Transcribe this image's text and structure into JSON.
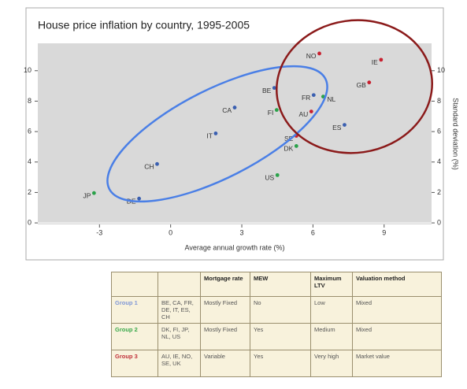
{
  "chart_data": {
    "type": "scatter",
    "title": "House price inflation by country, 1995-2005",
    "xlabel": "Average annual growth rate (%)",
    "y2label": "Standard deviation (%)",
    "point_labels": [
      "JP",
      "DE",
      "CH",
      "IT",
      "CA",
      "BE",
      "FI",
      "US",
      "FR",
      "NL",
      "AU",
      "SE",
      "DK",
      "ES",
      "NO",
      "IE",
      "GB"
    ],
    "x": [
      -3.23,
      -1.33,
      -0.57,
      1.9,
      2.7,
      4.37,
      4.47,
      4.5,
      6.03,
      6.43,
      5.93,
      5.3,
      5.3,
      7.33,
      6.27,
      8.87,
      8.37
    ],
    "values": [
      1.96,
      1.6,
      3.87,
      5.88,
      7.58,
      8.87,
      7.42,
      3.14,
      8.4,
      8.3,
      7.32,
      5.72,
      5.05,
      6.44,
      11.13,
      10.72,
      9.23
    ],
    "point_colors": [
      "#2aa24a",
      "#3a5fb0",
      "#3a5fb0",
      "#3a5fb0",
      "#3a5fb0",
      "#3a5fb0",
      "#2aa24a",
      "#2aa24a",
      "#3a5fb0",
      "#2aa24a",
      "#c8202f",
      "#c8202f",
      "#2aa24a",
      "#3a5fb0",
      "#c8202f",
      "#c8202f",
      "#c8202f"
    ],
    "xlim": [
      -5.6,
      11
    ],
    "xticks": [
      -3,
      0,
      3,
      6,
      9
    ],
    "ylim": [
      -0.1,
      11.8
    ],
    "yticks": [
      0,
      2,
      4,
      6,
      8,
      10
    ],
    "y2lim": [
      -0.1,
      11.8
    ],
    "y2ticks": [
      0,
      2,
      4,
      6,
      8,
      10
    ]
  },
  "table": {
    "header": [
      "Mortgage rate",
      "MEW",
      "Maximum LTV",
      "Valuation method"
    ],
    "rows": [
      {
        "group": "Group 1",
        "countries": "BE, CA, FR, DE, IT, ES, CH",
        "cells": [
          "Mostly Fixed",
          "No",
          "Low",
          "Mixed"
        ]
      },
      {
        "group": "Group 2",
        "countries": "DK, FI, JP, NL, US",
        "cells": [
          "Mostly Fixed",
          "Yes",
          "Medium",
          "Mixed"
        ]
      },
      {
        "group": "Group 3",
        "countries": "AU, IE, NO, SE, UK",
        "cells": [
          "Variable",
          "Yes",
          "Very high",
          "Market value"
        ]
      }
    ]
  }
}
